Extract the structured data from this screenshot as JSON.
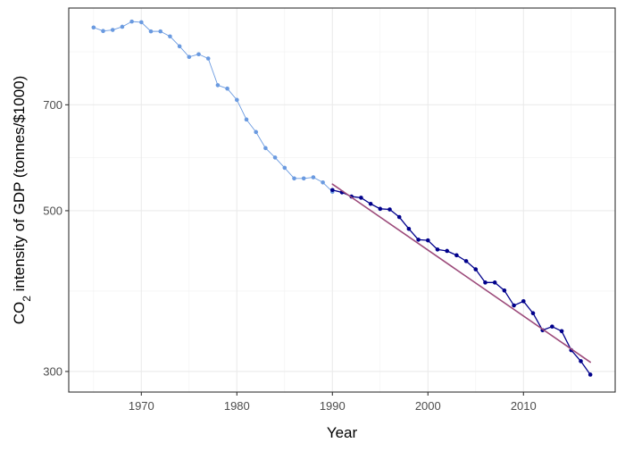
{
  "chart_data": {
    "type": "line",
    "xlabel": "Year",
    "ylabel": {
      "prefix": "CO",
      "subscript": "2",
      "suffix": " intensity of GDP (tonnes/$1000)"
    },
    "y_scale": "log",
    "xlim": [
      1962.4,
      2019.6
    ],
    "ylim": [
      281,
      952
    ],
    "x_ticks": [
      1970,
      1980,
      1990,
      2000,
      2010
    ],
    "y_ticks": [
      300,
      500,
      700
    ],
    "grid": true,
    "legend": "none",
    "series": [
      {
        "role": "historical",
        "color": "#6a9ae0",
        "points": [
          [
            1965,
            895
          ],
          [
            1966,
            885
          ],
          [
            1967,
            888
          ],
          [
            1968,
            897
          ],
          [
            1969,
            912
          ],
          [
            1970,
            910
          ],
          [
            1971,
            884
          ],
          [
            1972,
            884
          ],
          [
            1973,
            870
          ],
          [
            1974,
            843
          ],
          [
            1975,
            815
          ],
          [
            1976,
            822
          ],
          [
            1977,
            811
          ],
          [
            1978,
            745
          ],
          [
            1979,
            737
          ],
          [
            1980,
            711
          ],
          [
            1981,
            668
          ],
          [
            1982,
            642
          ],
          [
            1983,
            610
          ],
          [
            1984,
            592
          ],
          [
            1985,
            573
          ],
          [
            1986,
            554
          ],
          [
            1987,
            554
          ],
          [
            1988,
            556
          ],
          [
            1989,
            547
          ],
          [
            1990,
            531
          ]
        ]
      },
      {
        "role": "recent",
        "color": "#00008b",
        "points": [
          [
            1990,
            534
          ],
          [
            1991,
            530
          ],
          [
            1992,
            523
          ],
          [
            1993,
            521
          ],
          [
            1994,
            511
          ],
          [
            1995,
            503
          ],
          [
            1996,
            502
          ],
          [
            1997,
            490
          ],
          [
            1998,
            472
          ],
          [
            1999,
            456
          ],
          [
            2000,
            455
          ],
          [
            2001,
            442
          ],
          [
            2002,
            440
          ],
          [
            2003,
            434
          ],
          [
            2004,
            426
          ],
          [
            2005,
            415
          ],
          [
            2006,
            398
          ],
          [
            2007,
            398
          ],
          [
            2008,
            388
          ],
          [
            2009,
            370
          ],
          [
            2010,
            375
          ],
          [
            2011,
            361
          ],
          [
            2012,
            342
          ],
          [
            2013,
            346
          ],
          [
            2014,
            341
          ],
          [
            2015,
            321
          ],
          [
            2016,
            310
          ],
          [
            2017,
            297
          ]
        ]
      },
      {
        "role": "trend",
        "color": "#9c4a7a",
        "points": [
          [
            1990,
            544
          ],
          [
            2017,
            309
          ]
        ]
      }
    ]
  }
}
